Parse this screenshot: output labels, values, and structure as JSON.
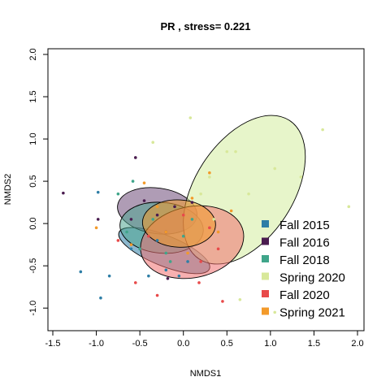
{
  "chart_data": {
    "type": "scatter",
    "title": "PR , stress= 0.221",
    "xlabel": "NMDS1",
    "ylabel": "NMDS2",
    "xlim": [
      -1.5,
      2.0
    ],
    "ylim": [
      -1.2,
      2.0
    ],
    "x_ticks": [
      "-1.5",
      "-1.0",
      "-0.5",
      "0.0",
      "0.5",
      "1.0",
      "1.5",
      "2.0"
    ],
    "y_ticks": [
      "-1.0",
      "-0.5",
      "0.0",
      "0.5",
      "1.0",
      "1.5",
      "2.0"
    ],
    "grid": false,
    "legend_position": "bottom-right",
    "series": [
      {
        "name": "Fall 2015",
        "color": "#2E7EA6",
        "ellipse_fill": "#2E7EA6",
        "ellipse": {
          "cx": -0.22,
          "cy": -0.32,
          "rx": 0.56,
          "ry": 0.18,
          "angle_deg": 22
        },
        "points": [
          [
            -1.18,
            -0.57
          ],
          [
            -0.98,
            0.37
          ],
          [
            -0.95,
            -0.88
          ],
          [
            -0.85,
            -0.62
          ],
          [
            -0.6,
            -0.3
          ],
          [
            -0.4,
            -0.62
          ],
          [
            -0.2,
            -0.55
          ],
          [
            -0.05,
            -0.62
          ],
          [
            0.05,
            -0.45
          ],
          [
            -0.3,
            -0.2
          ]
        ]
      },
      {
        "name": "Fall 2016",
        "color": "#4A1C4F",
        "ellipse_fill": "#6E4A78",
        "ellipse": {
          "cx": -0.3,
          "cy": 0.15,
          "rx": 0.46,
          "ry": 0.27,
          "angle_deg": 8
        },
        "points": [
          [
            -1.38,
            0.36
          ],
          [
            -0.98,
            0.05
          ],
          [
            -0.55,
            0.78
          ],
          [
            -0.45,
            0.27
          ],
          [
            -0.3,
            0.1
          ],
          [
            -0.1,
            0.2
          ],
          [
            -0.2,
            -0.1
          ],
          [
            0.1,
            0.25
          ],
          [
            -0.6,
            0.05
          ],
          [
            -0.18,
            -0.65
          ]
        ]
      },
      {
        "name": "Fall 2018",
        "color": "#3FA58A",
        "ellipse_fill": "#4FA690",
        "ellipse": {
          "cx": -0.25,
          "cy": -0.05,
          "rx": 0.48,
          "ry": 0.3,
          "angle_deg": 5
        },
        "points": [
          [
            -0.75,
            0.35
          ],
          [
            -0.65,
            -0.1
          ],
          [
            -0.5,
            -0.3
          ],
          [
            -0.2,
            -0.35
          ],
          [
            0.0,
            -0.15
          ],
          [
            -0.35,
            0.05
          ],
          [
            0.1,
            0.05
          ],
          [
            -0.15,
            -0.45
          ],
          [
            -0.58,
            0.5
          ]
        ]
      },
      {
        "name": "Spring 2020",
        "color": "#D8E89A",
        "ellipse_fill": "#D4ED9E",
        "ellipse": {
          "cx": 0.7,
          "cy": 0.4,
          "rx": 0.95,
          "ry": 0.58,
          "angle_deg": -57
        },
        "points": [
          [
            0.08,
            1.25
          ],
          [
            1.6,
            1.11
          ],
          [
            0.6,
            0.85
          ],
          [
            1.05,
            0.65
          ],
          [
            0.3,
            0.55
          ],
          [
            0.75,
            0.35
          ],
          [
            1.35,
            0.55
          ],
          [
            1.9,
            0.2
          ],
          [
            1.05,
            -1.05
          ],
          [
            0.65,
            -0.9
          ],
          [
            -0.35,
            0.96
          ],
          [
            0.35,
            0.05
          ],
          [
            0.5,
            0.85
          ],
          [
            0.2,
            0.35
          ]
        ]
      },
      {
        "name": "Fall 2020",
        "color": "#E84A4A",
        "ellipse_fill": "#F07070",
        "ellipse": {
          "cx": 0.1,
          "cy": -0.22,
          "rx": 0.6,
          "ry": 0.42,
          "angle_deg": -12
        },
        "points": [
          [
            -0.75,
            -0.2
          ],
          [
            0.18,
            -0.7
          ],
          [
            0.3,
            -0.05
          ],
          [
            0.45,
            -0.92
          ],
          [
            -0.3,
            -0.85
          ],
          [
            0.0,
            0.1
          ],
          [
            0.4,
            -0.3
          ],
          [
            -0.4,
            -0.15
          ],
          [
            0.2,
            -0.45
          ],
          [
            -0.55,
            -0.7
          ]
        ]
      },
      {
        "name": "Spring 2021",
        "color": "#F39A2A",
        "ellipse_fill": "#F39A2A",
        "ellipse": {
          "cx": -0.05,
          "cy": 0.0,
          "rx": 0.42,
          "ry": 0.28,
          "angle_deg": 3
        },
        "points": [
          [
            -1.0,
            -0.05
          ],
          [
            -0.6,
            -0.25
          ],
          [
            -0.2,
            -0.1
          ],
          [
            0.1,
            0.3
          ],
          [
            0.4,
            -0.1
          ],
          [
            0.3,
            0.6
          ],
          [
            -0.45,
            0.48
          ],
          [
            0.05,
            -0.35
          ],
          [
            -0.3,
            0.2
          ],
          [
            0.55,
            0.15
          ]
        ]
      }
    ]
  }
}
